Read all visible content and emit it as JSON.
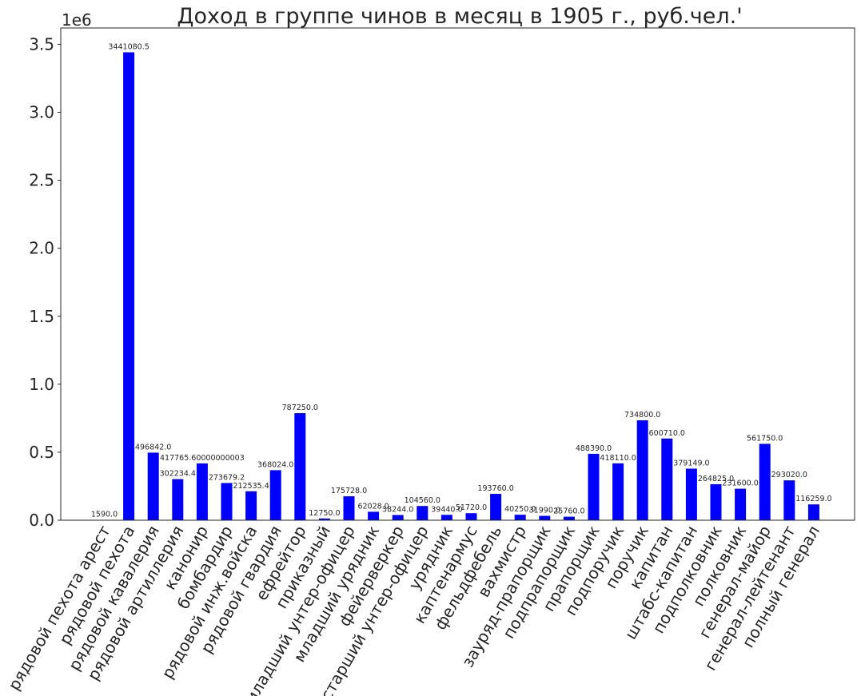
{
  "chart_data": {
    "type": "bar",
    "title": "Доход в группе чинов в месяц в  1905 г.,  руб.чел.'",
    "y_offset_label": "1e6",
    "ylim": [
      0,
      3.62
    ],
    "yticks": [
      0.0,
      0.5,
      1.0,
      1.5,
      2.0,
      2.5,
      3.0,
      3.5
    ],
    "ytick_labels": [
      "0.0",
      "0.5",
      "1.0",
      "1.5",
      "2.0",
      "2.5",
      "3.0",
      "3.5"
    ],
    "grid": false,
    "bar_color": "#0000ff",
    "categories": [
      "рядовой пехота арест",
      "рядовой пехота",
      "рядовой кавалерия",
      "рядовой артиллерия",
      "канонир",
      "бомбардир",
      "рядовой инж.войска",
      "рядовой гвардия",
      "ефрейтор",
      "приказный",
      "младший унтер-офицер",
      "младший урядник",
      "фейерверкер",
      "старший унтер-офицер",
      "урядник",
      "каптенармус",
      "фельдфебель",
      "вахмистр",
      "зауряд-прапорщик",
      "подпрапорщик",
      "прапорщик",
      "подпоручик",
      "поручик",
      "капитан",
      "штабс-капитан",
      "подполковник",
      "полковник",
      "генерал-майор",
      "генерал-лейтенант",
      "полный генерал"
    ],
    "values": [
      1590.0,
      3441080.5,
      496842.0,
      302234.4,
      417765.60000000003,
      273679.2,
      212535.4,
      368024.0,
      787250.0,
      12750.0,
      175728.0,
      62028.0,
      38244.0,
      104560.0,
      39440.0,
      51720.0,
      193760.0,
      40250.0,
      31990.0,
      25760.0,
      488390.0,
      418110.0,
      734800.0,
      600710.0,
      379149.0,
      264825.0,
      231600.0,
      561750.0,
      293020.0,
      116259.0
    ],
    "value_labels": [
      "1590.0",
      "3441080.5",
      "496842.0",
      "302234.4",
      "417765.60000000003",
      "273679.2",
      "212535.4",
      "368024.0",
      "787250.0",
      "12750.0",
      "175728.0",
      "62028.0",
      "38244.0",
      "104560.0",
      "39440.0",
      "51720.0",
      "193760.0",
      "40250.0",
      "31990.0",
      "25760.0",
      "488390.0",
      "418110.0",
      "734800.0",
      "600710.0",
      "379149.0",
      "264825.0",
      "231600.0",
      "561750.0",
      "293020.0",
      "116259.0"
    ]
  }
}
